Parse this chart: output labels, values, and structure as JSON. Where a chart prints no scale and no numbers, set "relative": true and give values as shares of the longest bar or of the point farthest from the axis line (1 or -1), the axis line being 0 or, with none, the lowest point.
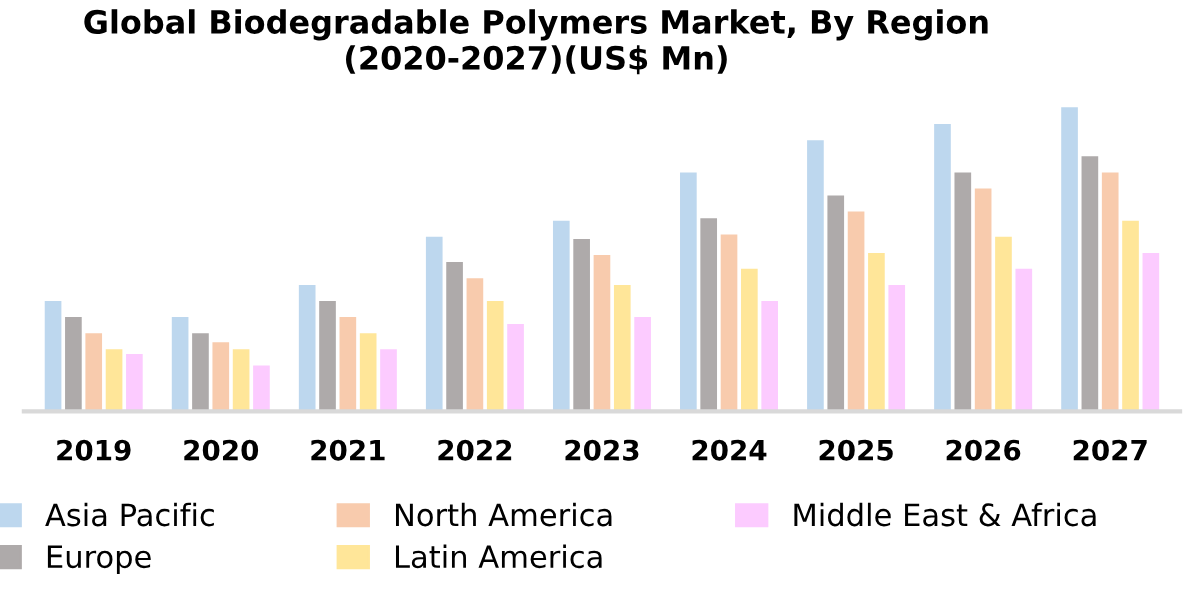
{
  "chart_data": {
    "type": "bar",
    "title": "Global Biodegradable Polymers Market, By Region (2020-2027)(US$ Mn)",
    "relative": true,
    "legend": "bottom",
    "grid": false,
    "categories": [
      "2019",
      "2020",
      "2021",
      "2022",
      "2023",
      "2024",
      "2025",
      "2026",
      "2027"
    ],
    "series": [
      {
        "name": "Asia Pacific",
        "color": "#bdd7ee",
        "values": [
          0.363,
          0.31,
          0.416,
          0.574,
          0.627,
          0.786,
          0.892,
          0.945,
          1
        ]
      },
      {
        "name": "Europe",
        "color": "#aeaaaa",
        "values": [
          0.31,
          0.257,
          0.363,
          0.491,
          0.567,
          0.635,
          0.71,
          0.786,
          0.839
        ]
      },
      {
        "name": "North America",
        "color": "#f8cbad",
        "values": [
          0.257,
          0.227,
          0.31,
          0.438,
          0.514,
          0.582,
          0.657,
          0.733,
          0.786
        ]
      },
      {
        "name": "Latin America",
        "color": "#ffe699",
        "values": [
          0.204,
          0.204,
          0.257,
          0.363,
          0.416,
          0.469,
          0.521,
          0.574,
          0.627
        ]
      },
      {
        "name": "Middle East & Africa",
        "color": "#fccbff",
        "values": [
          0.189,
          0.151,
          0.204,
          0.287,
          0.31,
          0.363,
          0.416,
          0.469,
          0.521
        ]
      }
    ]
  }
}
